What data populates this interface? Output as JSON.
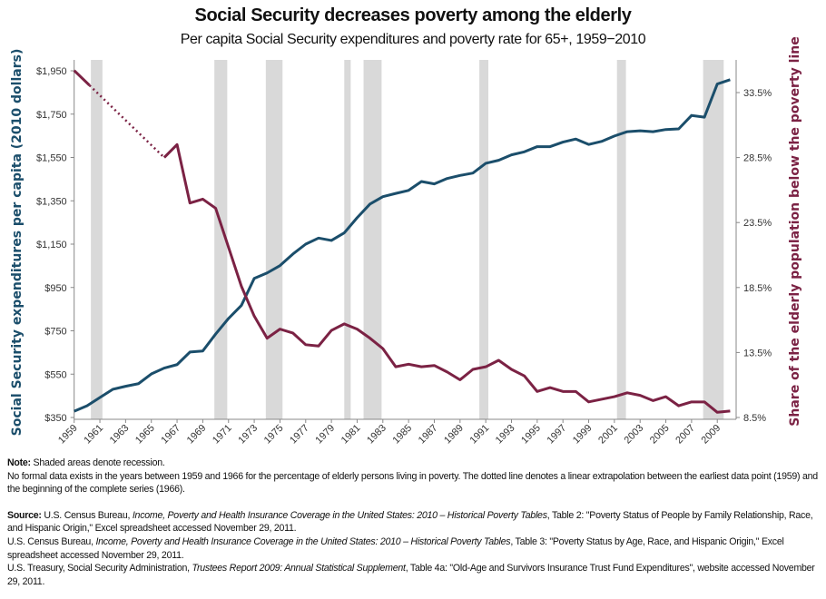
{
  "title": "Social Security decreases poverty among the elderly",
  "subtitle": "Per capita Social Security expenditures and poverty rate for 65+, 1959−2010",
  "chart_data": {
    "type": "line",
    "title": "Social Security decreases poverty among the elderly",
    "subtitle": "Per capita Social Security expenditures and poverty rate for 65+, 1959−2010",
    "x": [
      1959,
      1960,
      1961,
      1962,
      1963,
      1964,
      1965,
      1966,
      1967,
      1968,
      1969,
      1970,
      1971,
      1972,
      1973,
      1974,
      1975,
      1976,
      1977,
      1978,
      1979,
      1980,
      1981,
      1982,
      1983,
      1984,
      1985,
      1986,
      1987,
      1988,
      1989,
      1990,
      1991,
      1992,
      1993,
      1994,
      1995,
      1996,
      1997,
      1998,
      1999,
      2000,
      2001,
      2002,
      2003,
      2004,
      2005,
      2006,
      2007,
      2008,
      2009,
      2010
    ],
    "xlim": [
      1959,
      2010
    ],
    "xticks": [
      "1959",
      "1961",
      "1963",
      "1965",
      "1967",
      "1969",
      "1971",
      "1973",
      "1975",
      "1977",
      "1979",
      "1981",
      "1983",
      "1985",
      "1987",
      "1989",
      "1991",
      "1993",
      "1995",
      "1997",
      "1999",
      "2001",
      "2003",
      "2005",
      "2007",
      "2009"
    ],
    "y_left": {
      "label": "Social Security expenditures per capita (2010 dollars)",
      "range": [
        350,
        1950
      ],
      "ticks": [
        "$350",
        "$550",
        "$750",
        "$950",
        "$1,150",
        "$1,350",
        "$1,550",
        "$1,750",
        "$1,950"
      ],
      "tick_values": [
        350,
        550,
        750,
        950,
        1150,
        1350,
        1550,
        1750,
        1950
      ],
      "color": "#1b4e6b"
    },
    "y_right": {
      "label": "Share of the elderly population below the poverty line",
      "range": [
        8.5,
        33.5
      ],
      "ticks": [
        "8.5%",
        "13.5%",
        "18.5%",
        "23.5%",
        "28.5%",
        "33.5%"
      ],
      "tick_values": [
        8.5,
        13.5,
        18.5,
        23.5,
        28.5,
        33.5
      ],
      "color": "#7b2244"
    },
    "series": [
      {
        "axis": "left",
        "color": "#1b4e6b",
        "values": [
          379,
          404,
          442,
          480,
          494,
          506,
          551,
          578,
          594,
          652,
          657,
          735,
          807,
          867,
          992,
          1017,
          1051,
          1104,
          1150,
          1178,
          1167,
          1202,
          1272,
          1335,
          1369,
          1384,
          1398,
          1439,
          1428,
          1453,
          1467,
          1478,
          1523,
          1537,
          1562,
          1576,
          1600,
          1600,
          1621,
          1635,
          1610,
          1624,
          1649,
          1669,
          1673,
          1669,
          1679,
          1682,
          1744,
          1736,
          1889,
          1909
        ]
      },
      {
        "axis": "right",
        "color": "#7b2244",
        "extrapolated_between": [
          1959,
          1966
        ],
        "values": [
          35.2,
          null,
          null,
          null,
          null,
          null,
          null,
          28.5,
          29.5,
          25.0,
          25.3,
          24.6,
          21.6,
          18.6,
          16.3,
          14.6,
          15.3,
          15.0,
          14.1,
          14.0,
          15.2,
          15.7,
          15.3,
          14.6,
          13.8,
          12.4,
          12.6,
          12.4,
          12.5,
          12.0,
          11.4,
          12.2,
          12.4,
          12.9,
          12.2,
          11.7,
          10.5,
          10.8,
          10.5,
          10.5,
          9.7,
          9.9,
          10.1,
          10.4,
          10.2,
          9.8,
          10.1,
          9.4,
          9.7,
          9.7,
          8.9,
          9.0
        ]
      }
    ],
    "recessions": [
      [
        1960.3,
        1961.2
      ],
      [
        1969.9,
        1970.9
      ],
      [
        1973.9,
        1975.2
      ],
      [
        1980.0,
        1980.5
      ],
      [
        1981.5,
        1982.9
      ],
      [
        1990.5,
        1991.2
      ],
      [
        2001.2,
        2001.9
      ],
      [
        2007.9,
        2009.5
      ]
    ],
    "recession_color": "#d9d9d9",
    "grid": false,
    "legend": "none"
  },
  "notes": {
    "note_label": "Note:",
    "note_text": " Shaded areas denote recession.",
    "note_line2": "No formal data exists in the years between 1959 and 1966 for the percentage of elderly persons living in poverty. The dotted line denotes a linear extrapolation between the earliest data point (1959) and the beginning of the complete series (1966).",
    "source_label": "Source:",
    "sources": [
      {
        "pre": " U.S. Census Bureau, ",
        "italic": "Income, Poverty and Health Insurance Coverage in the United States: 2010 – Historical Poverty Tables",
        "post": ", Table 2: \"Poverty Status of People by Family Relationship, Race, and Hispanic Origin,\" Excel spreadsheet accessed November 29, 2011."
      },
      {
        "pre": "U.S. Census Bureau, ",
        "italic": "Income, Poverty and Health Insurance Coverage in the United States: 2010 – Historical Poverty Tables",
        "post": ", Table 3: \"Poverty Status by Age, Race, and Hispanic Origin,\" Excel spreadsheet accessed November 29, 2011."
      },
      {
        "pre": "U.S. Treasury, Social Security Administration, ",
        "italic": "Trustees Report 2009: Annual Statistical Supplement",
        "post": ", Table 4a: \"Old-Age and Survivors Insurance Trust Fund Expenditures\", website accessed November 29, 2011."
      }
    ]
  }
}
